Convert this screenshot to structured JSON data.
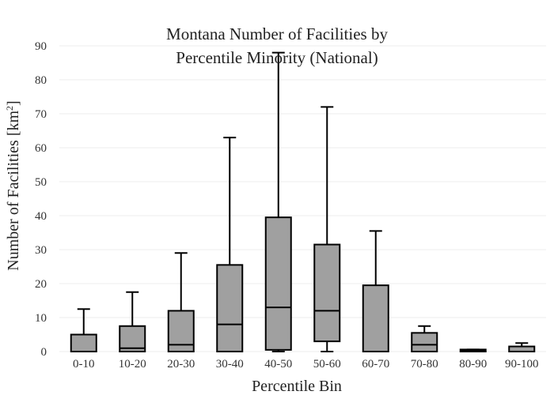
{
  "chart_data": {
    "type": "box",
    "title_lines": [
      "Montana Number of Facilities by",
      "Percentile Minority (National)"
    ],
    "xlabel": "Percentile Bin",
    "ylabel_main": "Number of Facilities  [km",
    "ylabel_sup": "2",
    "ylabel_close": "]",
    "ylim": [
      0,
      90
    ],
    "yticks": [
      0,
      10,
      20,
      30,
      40,
      50,
      60,
      70,
      80,
      90
    ],
    "grid": true,
    "box_color": "#a0a0a0",
    "line_color": "#000000",
    "categories": [
      "0-10",
      "10-20",
      "20-30",
      "30-40",
      "40-50",
      "50-60",
      "60-70",
      "70-80",
      "80-90",
      "90-100"
    ],
    "boxes": [
      {
        "min": 0,
        "q1": 0,
        "median": 0,
        "q3": 5,
        "max": 12.5
      },
      {
        "min": 0,
        "q1": 0,
        "median": 1,
        "q3": 7.5,
        "max": 17.5
      },
      {
        "min": 0,
        "q1": 0,
        "median": 2,
        "q3": 12,
        "max": 29
      },
      {
        "min": 0,
        "q1": 0,
        "median": 8,
        "q3": 25.5,
        "max": 63
      },
      {
        "min": 0,
        "q1": 0.5,
        "median": 13,
        "q3": 39.5,
        "max": 88
      },
      {
        "min": 0,
        "q1": 3,
        "median": 12,
        "q3": 31.5,
        "max": 72
      },
      {
        "min": 0,
        "q1": 0,
        "median": 0,
        "q3": 19.5,
        "max": 35.5
      },
      {
        "min": 0,
        "q1": 0,
        "median": 2,
        "q3": 5.5,
        "max": 7.5
      },
      {
        "min": 0,
        "q1": 0,
        "median": 0.3,
        "q3": 0.6,
        "max": 0.6
      },
      {
        "min": 0,
        "q1": 0,
        "median": 0,
        "q3": 1.5,
        "max": 2.5
      }
    ]
  }
}
